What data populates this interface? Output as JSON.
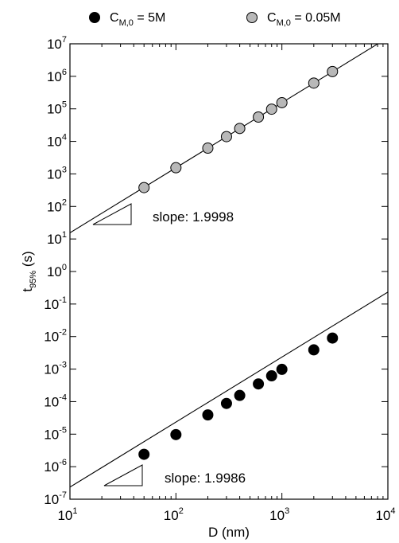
{
  "chart_data": {
    "type": "scatter",
    "title": "",
    "xlabel": "D (nm)",
    "ylabel_main": "t",
    "ylabel_sub": "95%",
    "ylabel_suffix": " (s)",
    "xscale": "log",
    "yscale": "log",
    "xlim": [
      10,
      10000
    ],
    "ylim": [
      1e-07,
      10000000.0
    ],
    "x_tick_labels": [
      {
        "base": "10",
        "exp": "1"
      },
      {
        "base": "10",
        "exp": "2"
      },
      {
        "base": "10",
        "exp": "3"
      },
      {
        "base": "10",
        "exp": "4"
      }
    ],
    "y_tick_labels": [
      {
        "base": "10",
        "exp": "-7"
      },
      {
        "base": "10",
        "exp": "-6"
      },
      {
        "base": "10",
        "exp": "-5"
      },
      {
        "base": "10",
        "exp": "-4"
      },
      {
        "base": "10",
        "exp": "-3"
      },
      {
        "base": "10",
        "exp": "-2"
      },
      {
        "base": "10",
        "exp": "-1"
      },
      {
        "base": "10",
        "exp": "0"
      },
      {
        "base": "10",
        "exp": "1"
      },
      {
        "base": "10",
        "exp": "2"
      },
      {
        "base": "10",
        "exp": "3"
      },
      {
        "base": "10",
        "exp": "4"
      },
      {
        "base": "10",
        "exp": "5"
      },
      {
        "base": "10",
        "exp": "6"
      },
      {
        "base": "10",
        "exp": "7"
      }
    ],
    "grid": false,
    "legend_position": "top",
    "series": [
      {
        "name_main": "C",
        "name_sub": "M,0",
        "name_suffix": " = 5M",
        "color": "#000000",
        "x": [
          50,
          100,
          200,
          300,
          400,
          600,
          800,
          1000,
          2000,
          3000
        ],
        "y": [
          2.4e-06,
          9.7e-06,
          3.9e-05,
          8.8e-05,
          0.000155,
          0.00035,
          0.00062,
          0.00098,
          0.0039,
          0.009
        ],
        "fit_slope": 1.9986,
        "fit_intercept_log10": -8.627,
        "slope_label": "slope: 1.9986"
      },
      {
        "name_main": "C",
        "name_sub": "M,0",
        "name_suffix": " = 0.05M",
        "color": "#b8b8b8",
        "x": [
          50,
          100,
          200,
          300,
          400,
          600,
          800,
          1000,
          2000,
          3000
        ],
        "y": [
          380,
          1550,
          6200,
          14000.0,
          25000.0,
          56000.0,
          98000.0,
          155000.0,
          620000.0,
          1400000.0
        ],
        "fit_slope": 1.9998,
        "fit_intercept_log10": -0.81,
        "slope_label": "slope: 1.9998"
      }
    ]
  }
}
